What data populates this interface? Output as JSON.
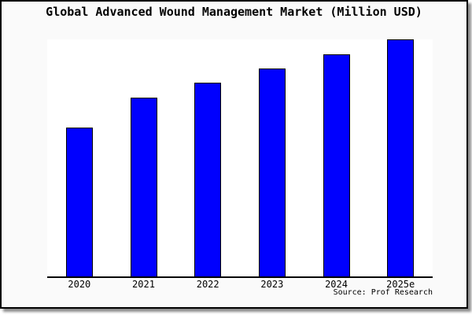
{
  "chart_data": {
    "type": "bar",
    "title": "Global Advanced Wound Management Market (Million USD)",
    "categories": [
      "2020",
      "2021",
      "2022",
      "2023",
      "2024",
      "2025e"
    ],
    "values_pct_of_tallest": [
      62.8,
      75.4,
      81.7,
      87.7,
      93.7,
      100
    ],
    "xlabel": "",
    "ylabel": "",
    "y_axis_labeled": false,
    "grid": false,
    "legend": false,
    "bar_color": "#0000fe",
    "bar_border_color": "#000000",
    "source_note": "Source: Prof Research"
  },
  "colors": {
    "card_background": "#fafafa",
    "plot_background": "#ffffff",
    "axis": "#000000",
    "text": "#000000",
    "bar_fill": "#0000fe",
    "frame_border": "#000000",
    "shadow_gray": "#8a8a8a"
  }
}
